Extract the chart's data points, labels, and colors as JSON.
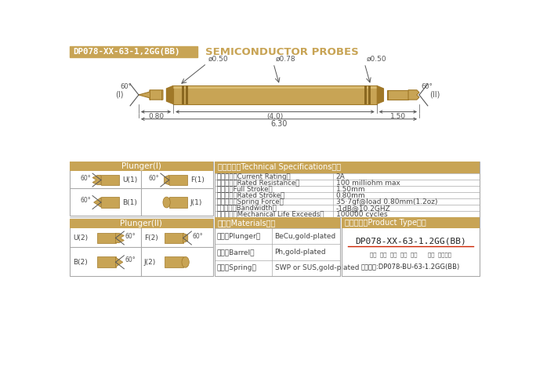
{
  "title_box_text": "DP078-XX-63-1,2GG(BB)",
  "title_subtitle": "SEMICONDUCTOR PROBES",
  "gold_color": "#C8A455",
  "gold_light": "#D4B46A",
  "gold_dark": "#A07828",
  "gold_shine": "#E8CE88",
  "header_bg": "#C8A455",
  "bg_color": "#FFFFFF",
  "dim_color": "#444444",
  "ann_color": "#555555",
  "border_color": "#AAAAAA",
  "spec_table": {
    "rows": [
      [
        "额定电流（Current Rating）",
        "2A"
      ],
      [
        "额定电阙（Rated Resistance）",
        "100 milliohm max"
      ],
      [
        "满行程（Full Stroke）",
        "1.50mm"
      ],
      [
        "额定行程（Rated Stroke）",
        "0.80mm"
      ],
      [
        "额定弹力（Spring Force）",
        "35·7gf@load 0.80mm(1.2oz)"
      ],
      [
        "频率带宽（Bandwidth）",
        "-1dB@10.2GHZ"
      ],
      [
        "测试寿命（Mechanical Life Exceeds）",
        "100000 cycles"
      ]
    ]
  },
  "materials_table": {
    "rows": [
      [
        "针头（Plunger）",
        "BeCu,gold-plated"
      ],
      [
        "针管（Barrel）",
        "Ph,gold-plated"
      ],
      [
        "弹簧（Spring）",
        "SWP or SUS,gold-plated"
      ]
    ]
  },
  "product_type": {
    "model": "DP078-XX-63-1.2GG(BB)",
    "labels": "系列  规格  头型  总长  弹力      镌金  针头材质",
    "example": "订购举例:DP078-BU-63-1.2GG(BB)"
  }
}
